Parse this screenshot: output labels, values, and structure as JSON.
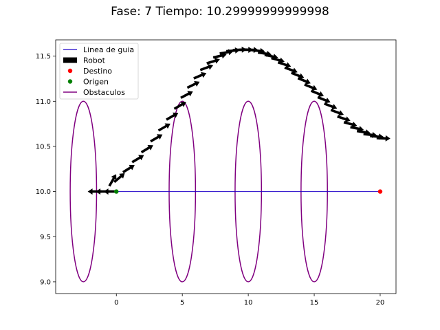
{
  "chart_data": {
    "type": "line",
    "title": "Fase: 7 Tiempo: 10.29999999999998",
    "xlabel": "",
    "ylabel": "",
    "xlim": [
      -4.6,
      21.2
    ],
    "ylim": [
      8.87,
      11.68
    ],
    "x_ticks": [
      0,
      5,
      10,
      15,
      20
    ],
    "x_tick_labels": [
      "0",
      "5",
      "10",
      "15",
      "20"
    ],
    "y_ticks": [
      9.0,
      9.5,
      10.0,
      10.5,
      11.0,
      11.5
    ],
    "y_tick_labels": [
      "9.0",
      "9.5",
      "10.0",
      "10.5",
      "11.0",
      "11.5"
    ],
    "grid": false,
    "legend_position": "top-left",
    "colors": {
      "guide": "#1f00c8",
      "robot": "#000000",
      "target": "#ff0000",
      "origin": "#008000",
      "obstacles": "#800080"
    },
    "series": [
      {
        "name": "Linea de guia",
        "kind": "line",
        "x": [
          0,
          20
        ],
        "y": [
          10.0,
          10.0
        ]
      },
      {
        "name": "Robot",
        "kind": "arrows",
        "x": [
          -0.4,
          -1.0,
          -1.6,
          -0.3,
          0.2,
          0.9,
          1.6,
          2.3,
          3.0,
          3.6,
          4.2,
          4.8,
          5.3,
          5.8,
          6.3,
          6.8,
          7.3,
          7.8,
          8.3,
          8.8,
          9.3,
          9.8,
          10.2,
          10.7,
          11.2,
          11.7,
          12.2,
          12.7,
          13.2,
          13.7,
          14.2,
          14.7,
          15.2,
          15.7,
          16.2,
          16.7,
          17.2,
          17.7,
          18.2,
          18.7,
          19.2,
          19.7,
          20.2
        ],
        "y": [
          10.0,
          10.0,
          10.0,
          10.12,
          10.15,
          10.25,
          10.36,
          10.47,
          10.59,
          10.71,
          10.83,
          10.95,
          11.07,
          11.18,
          11.28,
          11.37,
          11.44,
          11.5,
          11.54,
          11.56,
          11.57,
          11.57,
          11.57,
          11.56,
          11.53,
          11.5,
          11.46,
          11.41,
          11.35,
          11.29,
          11.23,
          11.16,
          11.09,
          11.02,
          10.95,
          10.88,
          10.81,
          10.75,
          10.7,
          10.66,
          10.63,
          10.61,
          10.59
        ],
        "heading_deg": [
          180,
          180,
          180,
          60,
          40,
          32,
          31,
          31,
          30,
          30,
          30,
          30,
          28,
          26,
          23,
          20,
          17,
          13,
          9,
          5,
          2,
          0,
          -2,
          -6,
          -9,
          -12,
          -15,
          -18,
          -20,
          -21,
          -22,
          -22,
          -22,
          -22,
          -21,
          -20,
          -18,
          -15,
          -12,
          -9,
          -6,
          -4,
          -2
        ]
      },
      {
        "name": "Destino",
        "kind": "point",
        "x": [
          20
        ],
        "y": [
          10.0
        ]
      },
      {
        "name": "Origen",
        "kind": "point",
        "x": [
          0
        ],
        "y": [
          10.0
        ]
      },
      {
        "name": "Obstaculos",
        "kind": "ellipses",
        "centers_x": [
          -2.5,
          5,
          10,
          15
        ],
        "centers_y": [
          10,
          10,
          10,
          10
        ],
        "radius_x": 1.0,
        "radius_y": 1.0
      }
    ]
  }
}
